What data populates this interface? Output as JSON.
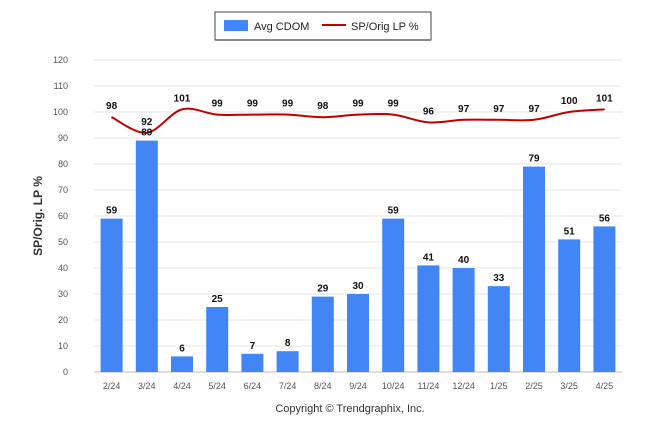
{
  "chart_data": {
    "type": "bar",
    "title": "",
    "xlabel": "",
    "ylabel": "SP/Orig. LP %",
    "ylim": [
      0,
      120
    ],
    "yticks": [
      0,
      10,
      20,
      30,
      40,
      50,
      60,
      70,
      80,
      90,
      100,
      110,
      120
    ],
    "grid": true,
    "legend_position": "top-center",
    "categories": [
      "2/24",
      "3/24",
      "4/24",
      "5/24",
      "6/24",
      "7/24",
      "8/24",
      "9/24",
      "10/24",
      "11/24",
      "12/24",
      "1/25",
      "2/25",
      "3/25",
      "4/25"
    ],
    "series": [
      {
        "name": "Avg CDOM",
        "kind": "bar",
        "color": "#4285f4",
        "values": [
          59,
          89,
          6,
          25,
          7,
          8,
          29,
          30,
          59,
          41,
          40,
          33,
          79,
          51,
          56
        ],
        "labels": [
          "59",
          "89",
          "6",
          "25",
          "7",
          "8",
          "29",
          "30",
          "59",
          "41",
          "40",
          "33",
          "79",
          "51",
          "56"
        ]
      },
      {
        "name": "SP/Orig LP %",
        "kind": "line",
        "color": "#c00000",
        "values": [
          98,
          92,
          101,
          99,
          99,
          99,
          98,
          99,
          99,
          96,
          97,
          97,
          97,
          100,
          101
        ],
        "labels": [
          "98",
          "92",
          "101",
          "99",
          "99",
          "99",
          "98",
          "99",
          "99",
          "96",
          "97",
          "97",
          "97",
          "100",
          "101"
        ]
      }
    ]
  },
  "copyright": "Copyright © Trendgraphix, Inc."
}
